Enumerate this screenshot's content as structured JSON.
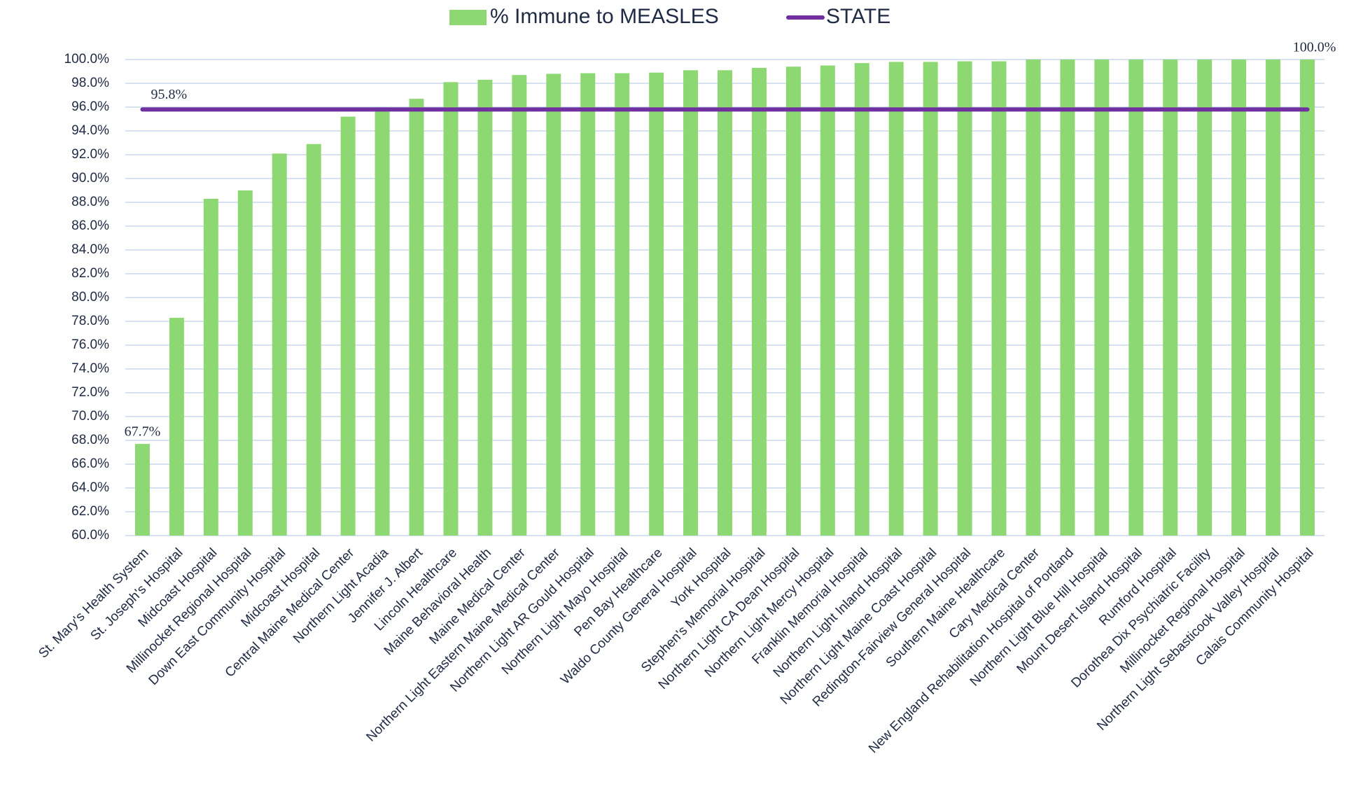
{
  "chart_data": {
    "type": "bar",
    "categories": [
      "St. Mary's Health System",
      "St. Joseph's Hospital",
      "Midcoast Hospital",
      "Millinocket Regional Hospital",
      "Down East Community Hospital",
      "Midcoast Hospital",
      "Central Maine Medical Center",
      "Northern Light Acadia",
      "Jennifer J. Albert",
      "Lincoln Healthcare",
      "Maine Behavioral Health",
      "Maine Medical Center",
      "Northern Light Eastern Maine Medical Center",
      "Northern Light AR Gould Hospital",
      "Northern Light Mayo Hospital",
      "Pen Bay Healthcare",
      "Waldo County General Hospital",
      "York Hospital",
      "Stephen's Memorial Hospital",
      "Northern Light CA Dean Hospital",
      "Northern Light Mercy Hospital",
      "Franklin Memorial Hospital",
      "Northern Light Inland Hospital",
      "Northern Light Maine Coast Hospital",
      "Redington-Fairview General Hospital",
      "Southern Maine Healthcare",
      "Cary Medical Center",
      "New England Rehabilitation Hospital of Portland",
      "Northern Light Blue Hill Hospital",
      "Mount Desert Island Hospital",
      "Rumford Hospital",
      "Dorothea Dix Psychiatric Facility",
      "Millinocket Regional Hospital",
      "Northern Light Sebasticook Valley Hospital",
      "Calais Community Hospital"
    ],
    "series": [
      {
        "name": "% Immune to MEASLES",
        "color": "#8ed873",
        "values": [
          67.7,
          78.3,
          88.3,
          89.0,
          92.1,
          92.9,
          95.2,
          95.7,
          96.7,
          98.1,
          98.3,
          98.7,
          98.8,
          98.85,
          98.85,
          98.9,
          99.1,
          99.1,
          99.3,
          99.4,
          99.5,
          99.7,
          99.8,
          99.8,
          99.85,
          99.85,
          100,
          100,
          100,
          100,
          100,
          100,
          100,
          100,
          100
        ],
        "value_labels": [
          "67.7%",
          null,
          null,
          null,
          null,
          null,
          null,
          null,
          null,
          null,
          null,
          null,
          null,
          null,
          null,
          null,
          null,
          null,
          null,
          null,
          null,
          null,
          null,
          null,
          null,
          null,
          null,
          null,
          null,
          null,
          null,
          null,
          null,
          null,
          "100.0%"
        ]
      },
      {
        "name": "STATE",
        "color": "#7030a0",
        "type": "line",
        "value": 95.8,
        "value_label": "95.8%"
      }
    ],
    "ylim": [
      60,
      100
    ],
    "yticks": [
      {
        "value": 60,
        "label": "60.0%"
      },
      {
        "value": 62,
        "label": "62.0%"
      },
      {
        "value": 64,
        "label": "64.0%"
      },
      {
        "value": 66,
        "label": "66.0%"
      },
      {
        "value": 68,
        "label": "68.0%"
      },
      {
        "value": 70,
        "label": "70.0%"
      },
      {
        "value": 72,
        "label": "72.0%"
      },
      {
        "value": 74,
        "label": "74.0%"
      },
      {
        "value": 76,
        "label": "76.0%"
      },
      {
        "value": 78,
        "label": "78.0%"
      },
      {
        "value": 80,
        "label": "80.0%"
      },
      {
        "value": 82,
        "label": "82.0%"
      },
      {
        "value": 84,
        "label": "84.0%"
      },
      {
        "value": 86,
        "label": "86.0%"
      },
      {
        "value": 88,
        "label": "88.0%"
      },
      {
        "value": 90,
        "label": "90.0%"
      },
      {
        "value": 92,
        "label": "92.0%"
      },
      {
        "value": 94,
        "label": "94.0%"
      },
      {
        "value": 96,
        "label": "96.0%"
      },
      {
        "value": 98,
        "label": "98.0%"
      },
      {
        "value": 100,
        "label": "100.0%"
      }
    ],
    "grid": true,
    "legend": "top"
  }
}
